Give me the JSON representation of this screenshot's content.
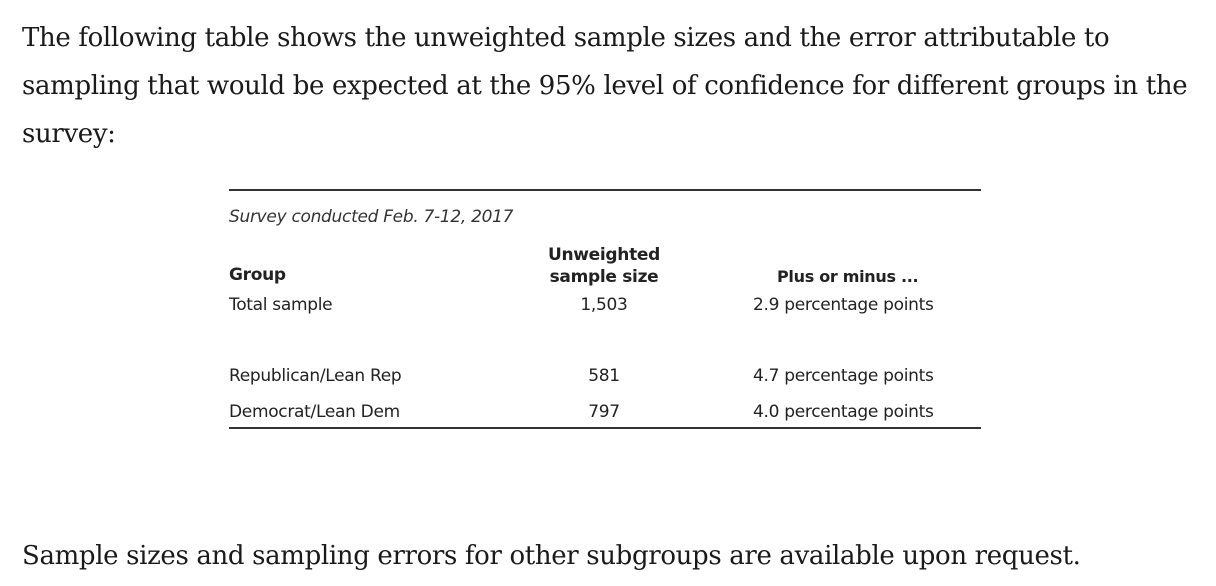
{
  "intro": {
    "text": "The following table shows the unweighted sample sizes and the error attributable to sampling that would be expected at the 95% level of confidence for different groups in the survey:"
  },
  "table": {
    "caption": "Survey conducted Feb. 7-12, 2017",
    "headers": {
      "group": "Group",
      "sample_size": "Unweighted sample size",
      "plus_minus": "Plus or minus ..."
    },
    "rows": [
      {
        "group": "Total sample",
        "sample_size": "1,503",
        "error": "2.9 percentage points"
      },
      {
        "group": "Republican/Lean Rep",
        "sample_size": "581",
        "error": "4.7 percentage points"
      },
      {
        "group": "Democrat/Lean Dem",
        "sample_size": "797",
        "error": "4.0 percentage points"
      }
    ]
  },
  "outro": {
    "text": "Sample sizes and sampling errors for other subgroups are available upon request."
  }
}
